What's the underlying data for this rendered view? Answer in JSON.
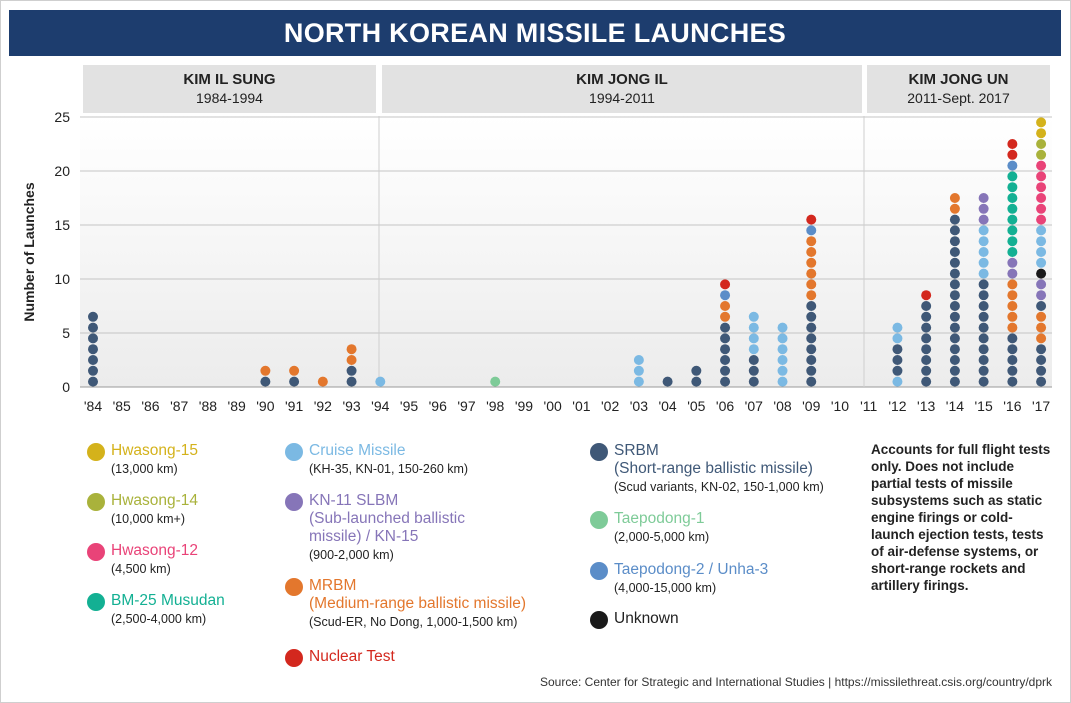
{
  "title": "NORTH KOREAN MISSILE LAUNCHES",
  "eras": [
    {
      "name": "KIM IL SUNG",
      "years": "1984-1994"
    },
    {
      "name": "KIM JONG IL",
      "years": "1994-2011"
    },
    {
      "name": "KIM JONG UN",
      "years": "2011-Sept. 2017"
    }
  ],
  "legend": [
    {
      "key": "hwasong15",
      "name": "Hwasong-15",
      "range": "(13,000 km)",
      "color": "#d4b21b"
    },
    {
      "key": "hwasong14",
      "name": "Hwasong-14",
      "range": "(10,000 km+)",
      "color": "#a9b23b"
    },
    {
      "key": "hwasong12",
      "name": "Hwasong-12",
      "range": "(4,500 km)",
      "color": "#e94378"
    },
    {
      "key": "musudan",
      "name": "BM-25 Musudan",
      "range": "(2,500-4,000 km)",
      "color": "#13b093"
    },
    {
      "key": "cruise",
      "name": "Cruise Missile",
      "range": "(KH-35, KN-01, 150-260 km)",
      "color": "#7bb9e3"
    },
    {
      "key": "slbm",
      "name": "KN-11 SLBM\n(Sub-launched ballistic\nmissile) / KN-15",
      "range": "(900-2,000 km)",
      "color": "#8675b8"
    },
    {
      "key": "mrbm",
      "name": "MRBM\n(Medium-range ballistic missile)",
      "range": "(Scud-ER, No Dong, 1,000-1,500 km)",
      "color": "#e3772d"
    },
    {
      "key": "nuclear",
      "name": "Nuclear Test",
      "range": "",
      "color": "#d3281e"
    },
    {
      "key": "srbm",
      "name": "SRBM\n(Short-range ballistic missile)",
      "range": "(Scud variants, KN-02, 150-1,000 km)",
      "color": "#3f5877"
    },
    {
      "key": "taepodong1",
      "name": "Taepodong-1",
      "range": "(2,000-5,000 km)",
      "color": "#7ecb98"
    },
    {
      "key": "taepodong2",
      "name": "Taepodong-2 / Unha-3",
      "range": "(4,000-15,000 km)",
      "color": "#5b8dc8"
    },
    {
      "key": "unknown",
      "name": "Unknown",
      "range": "",
      "color": "#1a1a1a"
    }
  ],
  "note": "Accounts for full flight tests only. Does not include partial tests of missile subsystems such as static engine firings or cold-launch ejection tests, tests of air-defense systems, or short-range rockets and artillery firings.",
  "source": "Source: Center for Strategic and International Studies  |  https://missilethreat.csis.org/country/dprk",
  "chart_data": {
    "type": "scatter",
    "ylabel": "Number of Launches",
    "ylim": [
      0,
      25
    ],
    "yticks": [
      0,
      5,
      10,
      15,
      20,
      25
    ],
    "categories": [
      "'84",
      "'85",
      "'86",
      "'87",
      "'88",
      "'89",
      "'90",
      "'91",
      "'92",
      "'93",
      "'94",
      "'95",
      "'96",
      "'97",
      "'98",
      "'99",
      "'00",
      "'01",
      "'02",
      "'03",
      "'04",
      "'05",
      "'06",
      "'07",
      "'08",
      "'09",
      "'10",
      "'11",
      "'12",
      "'13",
      "'14",
      "'15",
      "'16",
      "'17"
    ],
    "stacks": {
      "'84": [
        [
          "srbm",
          7
        ]
      ],
      "'90": [
        [
          "srbm",
          1
        ],
        [
          "mrbm",
          1
        ]
      ],
      "'91": [
        [
          "srbm",
          1
        ],
        [
          "mrbm",
          1
        ]
      ],
      "'92": [
        [
          "mrbm",
          1
        ]
      ],
      "'93": [
        [
          "srbm",
          2
        ],
        [
          "mrbm",
          2
        ]
      ],
      "'94": [
        [
          "cruise",
          1
        ]
      ],
      "'98": [
        [
          "taepodong1",
          1
        ]
      ],
      "'03": [
        [
          "cruise",
          3
        ]
      ],
      "'04": [
        [
          "srbm",
          1
        ]
      ],
      "'05": [
        [
          "srbm",
          2
        ]
      ],
      "'06": [
        [
          "srbm",
          6
        ],
        [
          "mrbm",
          2
        ],
        [
          "taepodong2",
          1
        ],
        [
          "nuclear",
          1
        ]
      ],
      "'07": [
        [
          "srbm",
          3
        ],
        [
          "cruise",
          4
        ]
      ],
      "'08": [
        [
          "cruise",
          6
        ]
      ],
      "'09": [
        [
          "srbm",
          8
        ],
        [
          "mrbm",
          6
        ],
        [
          "taepodong2",
          1
        ],
        [
          "nuclear",
          1
        ]
      ],
      "'12": [
        [
          "cruise",
          1
        ],
        [
          "srbm",
          3
        ],
        [
          "cruise",
          2
        ]
      ],
      "'13": [
        [
          "srbm",
          8
        ],
        [
          "nuclear",
          1
        ]
      ],
      "'14": [
        [
          "srbm",
          16
        ],
        [
          "mrbm",
          2
        ]
      ],
      "'15": [
        [
          "srbm",
          10
        ],
        [
          "cruise",
          5
        ],
        [
          "slbm",
          3
        ]
      ],
      "'16": [
        [
          "srbm",
          5
        ],
        [
          "mrbm",
          5
        ],
        [
          "slbm",
          2
        ],
        [
          "musudan",
          8
        ],
        [
          "taepodong2",
          1
        ],
        [
          "nuclear",
          2
        ]
      ],
      "'17": [
        [
          "srbm",
          4
        ],
        [
          "mrbm",
          3
        ],
        [
          "srbm",
          1
        ],
        [
          "slbm",
          2
        ],
        [
          "unknown",
          1
        ],
        [
          "cruise",
          4
        ],
        [
          "hwasong12",
          6
        ],
        [
          "hwasong14",
          2
        ],
        [
          "hwasong15",
          2
        ]
      ]
    }
  }
}
